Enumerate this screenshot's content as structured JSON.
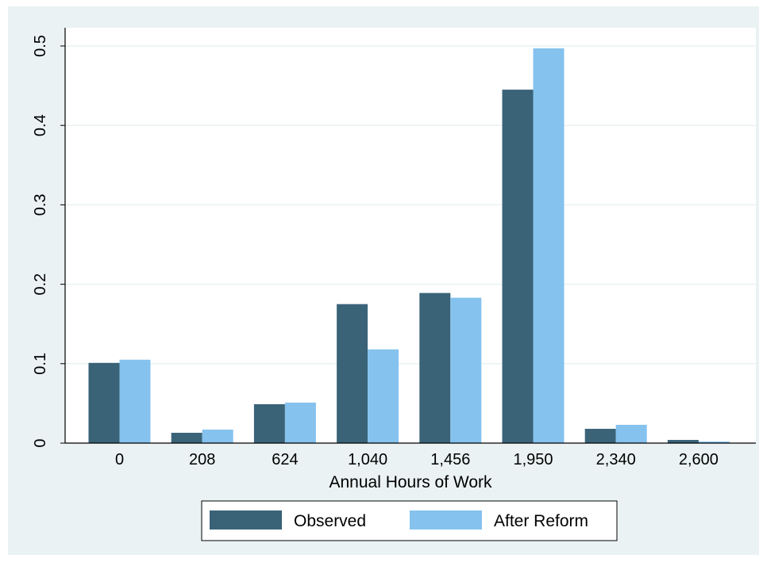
{
  "chart_data": {
    "type": "bar",
    "title": "",
    "xlabel": "Annual Hours of Work",
    "ylabel": "",
    "categories": [
      "0",
      "208",
      "624",
      "1,040",
      "1,456",
      "1,950",
      "2,340",
      "2,600"
    ],
    "series": [
      {
        "name": "Observed",
        "color": "#3a6378",
        "values": [
          0.101,
          0.013,
          0.049,
          0.175,
          0.189,
          0.445,
          0.018,
          0.004
        ]
      },
      {
        "name": "After Reform",
        "color": "#85c2ee",
        "values": [
          0.105,
          0.017,
          0.051,
          0.118,
          0.183,
          0.497,
          0.023,
          0.002
        ]
      }
    ],
    "ylim": [
      0,
      0.5
    ],
    "yticks": [
      0,
      0.1,
      0.2,
      0.3,
      0.4,
      0.5
    ],
    "ytick_labels": [
      "0",
      "0.1",
      "0.2",
      "0.3",
      "0.4",
      "0.5"
    ],
    "grid": true,
    "legend_position": "bottom"
  },
  "colors": {
    "outer_background": "#eaf2f3",
    "plot_background": "#ffffff",
    "gridline": "#eaf2f3",
    "axis": "#000000"
  }
}
